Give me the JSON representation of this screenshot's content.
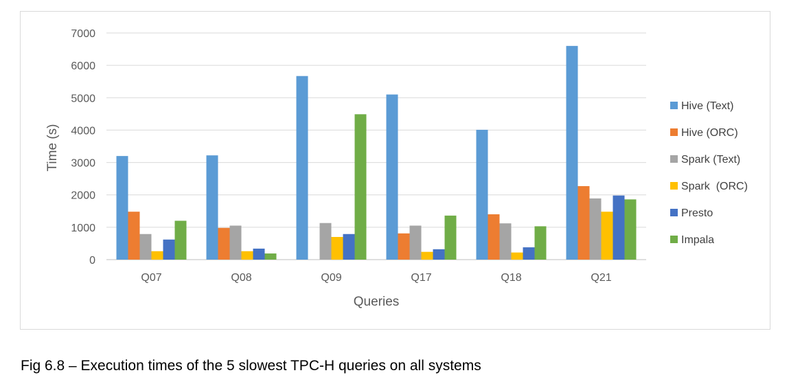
{
  "chart_data": {
    "type": "bar",
    "categories": [
      "Q07",
      "Q08",
      "Q09",
      "Q17",
      "Q18",
      "Q21"
    ],
    "series": [
      {
        "name": "Hive (Text)",
        "color": "#5b9bd5",
        "values": [
          3200,
          3220,
          5670,
          5100,
          4010,
          6600
        ]
      },
      {
        "name": "Hive (ORC)",
        "color": "#ed7d31",
        "values": [
          1480,
          980,
          0,
          810,
          1400,
          2270
        ]
      },
      {
        "name": "Spark (Text)",
        "color": "#a5a5a5",
        "values": [
          790,
          1050,
          1130,
          1050,
          1120,
          1890
        ]
      },
      {
        "name": "Spark  (ORC)",
        "color": "#ffc000",
        "values": [
          260,
          260,
          700,
          240,
          220,
          1480
        ]
      },
      {
        "name": "Presto",
        "color": "#4472c4",
        "values": [
          620,
          340,
          790,
          320,
          380,
          1980
        ]
      },
      {
        "name": "Impala",
        "color": "#70ad47",
        "values": [
          1200,
          190,
          4490,
          1360,
          1030,
          1860
        ]
      }
    ],
    "xlabel": "Queries",
    "ylabel": "Time (s)",
    "ylim": [
      0,
      7000
    ],
    "yticks": [
      0,
      1000,
      2000,
      3000,
      4000,
      5000,
      6000,
      7000
    ],
    "grid": true,
    "legend_position": "right"
  },
  "caption": "Fig 6.8 – Execution times of the 5 slowest TPC-H queries on all systems"
}
